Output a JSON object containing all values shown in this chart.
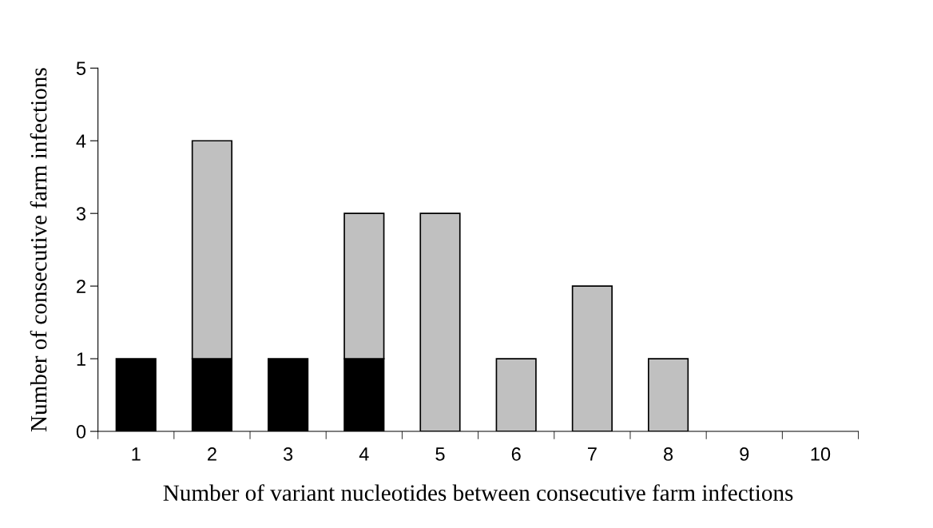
{
  "chart_data": {
    "type": "bar",
    "stacked": true,
    "xlabel": "Number of variant nucleotides between consecutive farm infections",
    "ylabel": "Number of consecutive farm infections",
    "categories": [
      "1",
      "2",
      "3",
      "4",
      "5",
      "6",
      "7",
      "8",
      "9",
      "10"
    ],
    "series": [
      {
        "color": "#000000",
        "values": [
          1,
          1,
          1,
          1,
          0,
          0,
          0,
          0,
          0,
          0
        ]
      },
      {
        "color": "#c0c0c0",
        "values": [
          0,
          3,
          0,
          2,
          3,
          1,
          2,
          1,
          0,
          0
        ]
      }
    ],
    "ylim": [
      0,
      5
    ],
    "yticks": [
      0,
      1,
      2,
      3,
      4,
      5
    ],
    "grid": false,
    "legend": false
  }
}
